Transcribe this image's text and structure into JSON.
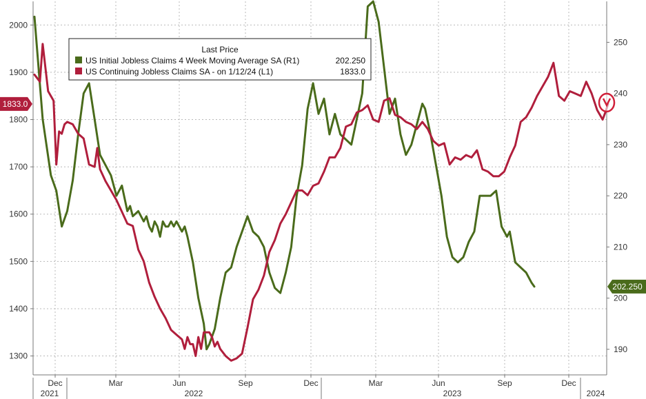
{
  "chart_data": {
    "type": "line",
    "legend": {
      "title": "Last Price",
      "placement": "top-left",
      "entries": [
        {
          "series": "initial",
          "label": "US Initial Jobless Claims 4 Week Moving Average SA  (R1)",
          "value": "202.250"
        },
        {
          "series": "continuing",
          "label": "US Continuing Jobless Claims SA -  on 1/12/24  (L1)",
          "value": "1833.0"
        }
      ]
    },
    "x_month_labels": [
      "Dec",
      "Mar",
      "Jun",
      "Sep",
      "Dec",
      "Mar",
      "Jun",
      "Sep",
      "Dec"
    ],
    "x_year_labels": [
      "2021",
      "2022",
      "2023",
      "2024"
    ],
    "left_axis": {
      "ticks": [
        "1300",
        "1400",
        "1500",
        "1600",
        "1700",
        "1800",
        "1900",
        "2000"
      ],
      "range": [
        1260,
        2050
      ],
      "tag": "1833.0"
    },
    "right_axis": {
      "ticks": [
        "190",
        "200",
        "210",
        "220",
        "230",
        "240",
        "250"
      ],
      "range": [
        185,
        258
      ],
      "tag": "202.250"
    },
    "grid": true,
    "colors": {
      "initial": "#4a6b1b",
      "continuing": "#b01e3c",
      "left_tag": "#b01e3c",
      "right_tag": "#4a6b1b",
      "highlight": "#d0203a"
    },
    "series": [
      {
        "id": "initial",
        "axis": "right",
        "values": [
          [
            0,
            255
          ],
          [
            3,
            235
          ],
          [
            6,
            224
          ],
          [
            8,
            221
          ],
          [
            10,
            214
          ],
          [
            12,
            217
          ],
          [
            14,
            223
          ],
          [
            16,
            232
          ],
          [
            18,
            240
          ],
          [
            20,
            242
          ],
          [
            22,
            235
          ],
          [
            24,
            228
          ],
          [
            26,
            226
          ],
          [
            28,
            224
          ],
          [
            30,
            220
          ],
          [
            32,
            222
          ],
          [
            34,
            217
          ],
          [
            35,
            218
          ],
          [
            36,
            216
          ],
          [
            38,
            217
          ],
          [
            40,
            215
          ],
          [
            41,
            216
          ],
          [
            42,
            214
          ],
          [
            43,
            213
          ],
          [
            44,
            215
          ],
          [
            45,
            214
          ],
          [
            46,
            212
          ],
          [
            47,
            215
          ],
          [
            48,
            214
          ],
          [
            49,
            214
          ],
          [
            50,
            215
          ],
          [
            51,
            214
          ],
          [
            52,
            215
          ],
          [
            53,
            214
          ],
          [
            54,
            213
          ],
          [
            55,
            214
          ],
          [
            56,
            212
          ],
          [
            58,
            207
          ],
          [
            60,
            200
          ],
          [
            62,
            195
          ],
          [
            63,
            190
          ],
          [
            64,
            191
          ],
          [
            66,
            194
          ],
          [
            68,
            200
          ],
          [
            70,
            205
          ],
          [
            72,
            206
          ],
          [
            74,
            210
          ],
          [
            76,
            213
          ],
          [
            78,
            216
          ],
          [
            80,
            213
          ],
          [
            82,
            212
          ],
          [
            84,
            210
          ],
          [
            86,
            205
          ],
          [
            88,
            202
          ],
          [
            90,
            201
          ],
          [
            92,
            205
          ],
          [
            94,
            210
          ],
          [
            96,
            220
          ],
          [
            98,
            226
          ],
          [
            100,
            237
          ],
          [
            102,
            242
          ],
          [
            104,
            236
          ],
          [
            106,
            239
          ],
          [
            108,
            232
          ],
          [
            110,
            236
          ],
          [
            112,
            232
          ],
          [
            114,
            231
          ],
          [
            116,
            230
          ],
          [
            118,
            235
          ],
          [
            120,
            240
          ],
          [
            122,
            257
          ],
          [
            124,
            258
          ],
          [
            126,
            254
          ],
          [
            128,
            245
          ],
          [
            130,
            236
          ],
          [
            132,
            239
          ],
          [
            134,
            232
          ],
          [
            136,
            228
          ],
          [
            138,
            230
          ],
          [
            140,
            234
          ],
          [
            142,
            238
          ],
          [
            143,
            237
          ],
          [
            145,
            232
          ],
          [
            147,
            226
          ],
          [
            149,
            220
          ],
          [
            151,
            212
          ],
          [
            153,
            208
          ],
          [
            155,
            207
          ],
          [
            157,
            208
          ],
          [
            159,
            211
          ],
          [
            161,
            213
          ],
          [
            163,
            220
          ],
          [
            165,
            220
          ],
          [
            167,
            220
          ],
          [
            169,
            221
          ],
          [
            171,
            214
          ],
          [
            173,
            212
          ],
          [
            174,
            213
          ],
          [
            176,
            207
          ],
          [
            178,
            206
          ],
          [
            180,
            205
          ],
          [
            182,
            203
          ],
          [
            183,
            202.25
          ]
        ]
      },
      {
        "id": "continuing",
        "axis": "left",
        "values": [
          [
            0,
            1895
          ],
          [
            2,
            1880
          ],
          [
            3,
            1960
          ],
          [
            5,
            1860
          ],
          [
            7,
            1840
          ],
          [
            8,
            1705
          ],
          [
            9,
            1775
          ],
          [
            10,
            1770
          ],
          [
            11,
            1790
          ],
          [
            12,
            1795
          ],
          [
            14,
            1790
          ],
          [
            16,
            1770
          ],
          [
            18,
            1760
          ],
          [
            20,
            1705
          ],
          [
            22,
            1700
          ],
          [
            23,
            1740
          ],
          [
            24,
            1695
          ],
          [
            26,
            1670
          ],
          [
            28,
            1650
          ],
          [
            30,
            1630
          ],
          [
            32,
            1605
          ],
          [
            34,
            1580
          ],
          [
            36,
            1575
          ],
          [
            38,
            1525
          ],
          [
            40,
            1500
          ],
          [
            42,
            1455
          ],
          [
            44,
            1425
          ],
          [
            46,
            1400
          ],
          [
            48,
            1380
          ],
          [
            50,
            1355
          ],
          [
            52,
            1345
          ],
          [
            54,
            1335
          ],
          [
            55,
            1315
          ],
          [
            56,
            1340
          ],
          [
            57,
            1325
          ],
          [
            58,
            1325
          ],
          [
            59,
            1300
          ],
          [
            60,
            1340
          ],
          [
            61,
            1315
          ],
          [
            62,
            1350
          ],
          [
            64,
            1350
          ],
          [
            65,
            1340
          ],
          [
            66,
            1320
          ],
          [
            67,
            1330
          ],
          [
            68,
            1315
          ],
          [
            70,
            1300
          ],
          [
            72,
            1290
          ],
          [
            74,
            1295
          ],
          [
            76,
            1305
          ],
          [
            78,
            1360
          ],
          [
            80,
            1420
          ],
          [
            82,
            1440
          ],
          [
            84,
            1470
          ],
          [
            86,
            1520
          ],
          [
            88,
            1545
          ],
          [
            90,
            1580
          ],
          [
            92,
            1600
          ],
          [
            94,
            1625
          ],
          [
            96,
            1650
          ],
          [
            98,
            1650
          ],
          [
            100,
            1640
          ],
          [
            102,
            1660
          ],
          [
            104,
            1665
          ],
          [
            106,
            1690
          ],
          [
            108,
            1720
          ],
          [
            110,
            1720
          ],
          [
            112,
            1740
          ],
          [
            114,
            1785
          ],
          [
            116,
            1790
          ],
          [
            118,
            1815
          ],
          [
            120,
            1820
          ],
          [
            122,
            1830
          ],
          [
            124,
            1800
          ],
          [
            126,
            1795
          ],
          [
            128,
            1840
          ],
          [
            130,
            1845
          ],
          [
            132,
            1810
          ],
          [
            134,
            1805
          ],
          [
            136,
            1795
          ],
          [
            138,
            1790
          ],
          [
            140,
            1780
          ],
          [
            142,
            1795
          ],
          [
            144,
            1780
          ],
          [
            146,
            1755
          ],
          [
            148,
            1745
          ],
          [
            150,
            1750
          ],
          [
            152,
            1705
          ],
          [
            154,
            1720
          ],
          [
            156,
            1715
          ],
          [
            158,
            1725
          ],
          [
            160,
            1720
          ],
          [
            162,
            1735
          ],
          [
            164,
            1695
          ],
          [
            166,
            1690
          ],
          [
            168,
            1680
          ],
          [
            170,
            1680
          ],
          [
            172,
            1690
          ],
          [
            174,
            1720
          ],
          [
            176,
            1745
          ],
          [
            178,
            1795
          ],
          [
            180,
            1805
          ],
          [
            182,
            1825
          ],
          [
            184,
            1850
          ],
          [
            186,
            1870
          ],
          [
            188,
            1890
          ],
          [
            190,
            1920
          ],
          [
            192,
            1850
          ],
          [
            194,
            1840
          ],
          [
            196,
            1860
          ],
          [
            198,
            1855
          ],
          [
            200,
            1850
          ],
          [
            202,
            1880
          ],
          [
            204,
            1855
          ],
          [
            206,
            1820
          ],
          [
            208,
            1800
          ],
          [
            209,
            1815
          ],
          [
            210,
            1833
          ]
        ]
      }
    ]
  }
}
